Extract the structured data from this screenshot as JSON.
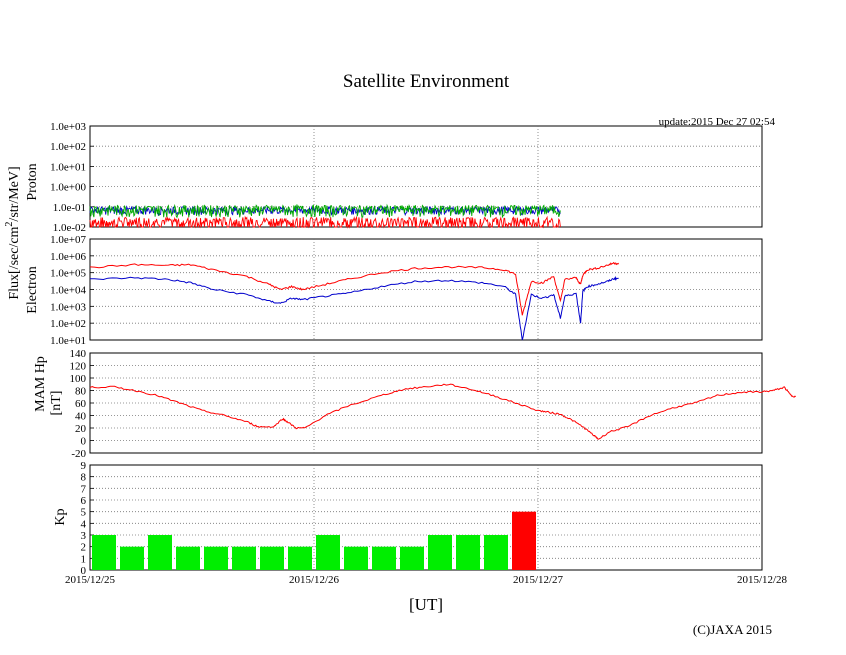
{
  "page": {
    "title": "Satellite Environment",
    "update": "update:2015 Dec 27 02:54",
    "xlabel": "[UT]",
    "copyright": "(C)JAXA 2015",
    "flux_label": "Flux[/sec/cm",
    "flux_label_sup": "2",
    "flux_label_end": "/str/MeV]"
  },
  "chart_data": [
    {
      "type": "line",
      "panel": "proton",
      "ylabel": "Proton",
      "yscale": "log",
      "ylim": [
        0.01,
        1000
      ],
      "ticks": [
        "1.0e-02",
        "1.0e-01",
        "1.0e+00",
        "1.0e+01",
        "1.0e+02",
        "1.0e+03"
      ],
      "x_unit": "days since 2015/12/25 00:00 UT",
      "series": [
        {
          "color": "#00aa00",
          "note": "noisy trace between ~0.04 and ~0.1",
          "points": [
            [
              0,
              0.08
            ],
            [
              0.5,
              0.08
            ],
            [
              1,
              0.08
            ],
            [
              1.5,
              0.08
            ],
            [
              2,
              0.08
            ],
            [
              2.1,
              0.08
            ]
          ]
        },
        {
          "color": "#0000cc",
          "note": "noisy trace between ~0.03 and ~0.12",
          "points": [
            [
              0,
              0.06
            ],
            [
              0.5,
              0.06
            ],
            [
              1,
              0.06
            ],
            [
              1.5,
              0.06
            ],
            [
              2,
              0.06
            ],
            [
              2.1,
              0.06
            ]
          ]
        },
        {
          "color": "#ff0000",
          "note": "noise floor with spikes down to 1e-2",
          "points": [
            [
              0,
              0.03
            ],
            [
              0.5,
              0.03
            ],
            [
              1,
              0.03
            ],
            [
              1.5,
              0.03
            ],
            [
              2,
              0.03
            ],
            [
              2.1,
              0.03
            ]
          ]
        }
      ]
    },
    {
      "type": "line",
      "panel": "electron",
      "ylabel": "Electron",
      "yscale": "log",
      "ylim": [
        10,
        10000000
      ],
      "ticks": [
        "1.0e+01",
        "1.0e+02",
        "1.0e+03",
        "1.0e+04",
        "1.0e+05",
        "1.0e+06",
        "1.0e+07"
      ],
      "series": [
        {
          "color": "#ff0000",
          "points": [
            [
              0,
              200000
            ],
            [
              0.2,
              300000
            ],
            [
              0.35,
              270000
            ],
            [
              0.45,
              300000
            ],
            [
              0.55,
              150000
            ],
            [
              0.7,
              60000
            ],
            [
              0.8,
              20000
            ],
            [
              0.85,
              10000
            ],
            [
              0.9,
              15000
            ],
            [
              0.95,
              10000
            ],
            [
              1.05,
              20000
            ],
            [
              1.15,
              40000
            ],
            [
              1.3,
              100000
            ],
            [
              1.45,
              180000
            ],
            [
              1.6,
              220000
            ],
            [
              1.75,
              200000
            ],
            [
              1.85,
              150000
            ],
            [
              1.9,
              80000
            ],
            [
              1.93,
              300
            ],
            [
              1.97,
              30000
            ],
            [
              2.02,
              25000
            ],
            [
              2.07,
              60000
            ],
            [
              2.1,
              2000
            ],
            [
              2.12,
              40000
            ],
            [
              2.17,
              50000
            ],
            [
              2.19,
              20000
            ],
            [
              2.2,
              70000
            ],
            [
              2.22,
              150000
            ],
            [
              2.26,
              180000
            ],
            [
              2.31,
              280000
            ],
            [
              2.34,
              380000
            ],
            [
              2.36,
              320000
            ]
          ]
        },
        {
          "color": "#0000cc",
          "points": [
            [
              0,
              40000
            ],
            [
              0.2,
              50000
            ],
            [
              0.35,
              40000
            ],
            [
              0.45,
              25000
            ],
            [
              0.55,
              10000
            ],
            [
              0.7,
              5000
            ],
            [
              0.8,
              2000
            ],
            [
              0.85,
              1500
            ],
            [
              0.9,
              3000
            ],
            [
              0.95,
              2500
            ],
            [
              1.05,
              4000
            ],
            [
              1.15,
              6000
            ],
            [
              1.3,
              15000
            ],
            [
              1.45,
              30000
            ],
            [
              1.6,
              35000
            ],
            [
              1.75,
              25000
            ],
            [
              1.85,
              15000
            ],
            [
              1.9,
              5000
            ],
            [
              1.93,
              10
            ],
            [
              1.97,
              5000
            ],
            [
              2.02,
              3000
            ],
            [
              2.07,
              5000
            ],
            [
              2.1,
              200
            ],
            [
              2.12,
              4000
            ],
            [
              2.17,
              6000
            ],
            [
              2.19,
              100
            ],
            [
              2.2,
              8000
            ],
            [
              2.22,
              15000
            ],
            [
              2.26,
              20000
            ],
            [
              2.31,
              30000
            ],
            [
              2.34,
              45000
            ],
            [
              2.36,
              45000
            ]
          ]
        }
      ]
    },
    {
      "type": "line",
      "panel": "mam_hp",
      "ylabel": "MAM Hp",
      "ylabel2": "[nT]",
      "ylim": [
        -20,
        140
      ],
      "ticks": [
        "-20",
        "0",
        "20",
        "40",
        "60",
        "80",
        "100",
        "120",
        "140"
      ],
      "series": [
        {
          "color": "#ff0000",
          "points": [
            [
              0,
              85
            ],
            [
              0.1,
              86
            ],
            [
              0.2,
              80
            ],
            [
              0.3,
              72
            ],
            [
              0.4,
              60
            ],
            [
              0.5,
              48
            ],
            [
              0.6,
              40
            ],
            [
              0.7,
              30
            ],
            [
              0.75,
              22
            ],
            [
              0.82,
              22
            ],
            [
              0.86,
              35
            ],
            [
              0.88,
              30
            ],
            [
              0.92,
              20
            ],
            [
              0.96,
              20
            ],
            [
              1.05,
              40
            ],
            [
              1.15,
              55
            ],
            [
              1.3,
              72
            ],
            [
              1.4,
              82
            ],
            [
              1.5,
              86
            ],
            [
              1.6,
              90
            ],
            [
              1.7,
              82
            ],
            [
              1.8,
              72
            ],
            [
              1.9,
              60
            ],
            [
              2.0,
              48
            ],
            [
              2.05,
              45
            ],
            [
              2.1,
              42
            ],
            [
              2.15,
              33
            ],
            [
              2.2,
              22
            ],
            [
              2.25,
              8
            ],
            [
              2.27,
              2
            ],
            [
              2.32,
              14
            ],
            [
              2.4,
              22
            ],
            [
              2.5,
              40
            ],
            [
              2.6,
              52
            ],
            [
              2.7,
              60
            ],
            [
              2.8,
              72
            ],
            [
              2.9,
              77
            ],
            [
              3.0,
              78
            ],
            [
              3.05,
              80
            ],
            [
              3.1,
              85
            ],
            [
              3.13,
              72
            ],
            [
              3.15,
              70
            ]
          ]
        }
      ]
    },
    {
      "type": "bar",
      "panel": "kp",
      "ylabel": "Kp",
      "ylim": [
        0,
        9
      ],
      "ticks": [
        "0",
        "1",
        "2",
        "3",
        "4",
        "5",
        "6",
        "7",
        "8",
        "9"
      ],
      "bar_width_hours": 3,
      "values": [
        3,
        2,
        3,
        2,
        2,
        2,
        2,
        2,
        3,
        2,
        2,
        2,
        3,
        3,
        3,
        5
      ],
      "colors": [
        "#00ee00",
        "#00ee00",
        "#00ee00",
        "#00ee00",
        "#00ee00",
        "#00ee00",
        "#00ee00",
        "#00ee00",
        "#00ee00",
        "#00ee00",
        "#00ee00",
        "#00ee00",
        "#00ee00",
        "#00ee00",
        "#00ee00",
        "#ff0000"
      ]
    }
  ],
  "x_axis": {
    "range_days": [
      0,
      3
    ],
    "tick_labels": [
      "2015/12/25",
      "2015/12/26",
      "2015/12/27",
      "2015/12/28"
    ]
  }
}
